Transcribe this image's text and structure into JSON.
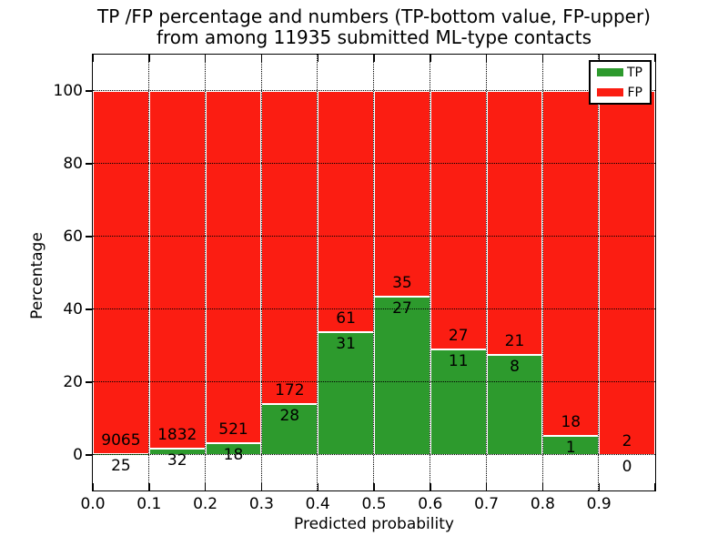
{
  "title": {
    "line1": "TP /FP percentage and numbers (TP-bottom value, FP-upper)",
    "line2": "from among 11935 submitted ML-type contacts"
  },
  "axes": {
    "xlabel": "Predicted probability",
    "ylabel": "Percentage"
  },
  "chart_data": {
    "type": "bar",
    "stacked": true,
    "normalized": "each bin stacked to 100%",
    "title": "TP /FP percentage and numbers (TP-bottom value, FP-upper) from among 11935 submitted ML-type contacts",
    "total_contacts": 11935,
    "xlabel": "Predicted probability",
    "ylabel": "Percentage",
    "xlim": [
      0.0,
      1.0
    ],
    "ylim": [
      -10,
      110
    ],
    "bin_edges": [
      0.0,
      0.1,
      0.2,
      0.3,
      0.4,
      0.5,
      0.6,
      0.7,
      0.8,
      0.9,
      1.0
    ],
    "x_tick_labels": [
      "0.0",
      "0.1",
      "0.2",
      "0.3",
      "0.4",
      "0.5",
      "0.6",
      "0.7",
      "0.8",
      "0.9"
    ],
    "y_ticks": [
      0,
      20,
      40,
      60,
      80,
      100
    ],
    "grid": "dotted black, both axes",
    "annotation_rule": "FP count printed above green top, TP count printed below green top",
    "series": [
      {
        "name": "TP",
        "color": "#2d9a2d",
        "counts": [
          25,
          32,
          18,
          28,
          31,
          27,
          11,
          8,
          1,
          0
        ],
        "percent": [
          0.28,
          1.72,
          3.34,
          14.0,
          33.7,
          43.55,
          28.95,
          27.59,
          5.26,
          0.0
        ]
      },
      {
        "name": "FP",
        "color": "#fb1d12",
        "counts": [
          9065,
          1832,
          521,
          172,
          61,
          35,
          27,
          21,
          18,
          2
        ],
        "percent": [
          99.72,
          98.28,
          96.66,
          86.0,
          66.3,
          56.45,
          71.05,
          72.41,
          94.74,
          100.0
        ]
      }
    ],
    "legend": {
      "position": "upper right",
      "entries": [
        {
          "label": "TP",
          "color": "#2d9a2d"
        },
        {
          "label": "FP",
          "color": "#fb1d12"
        }
      ]
    }
  },
  "colors": {
    "tp": "#2d9a2d",
    "fp": "#fb1d12",
    "bar_edge": "#ffffff",
    "grid": "#000000",
    "text": "#000000",
    "background": "#ffffff"
  }
}
